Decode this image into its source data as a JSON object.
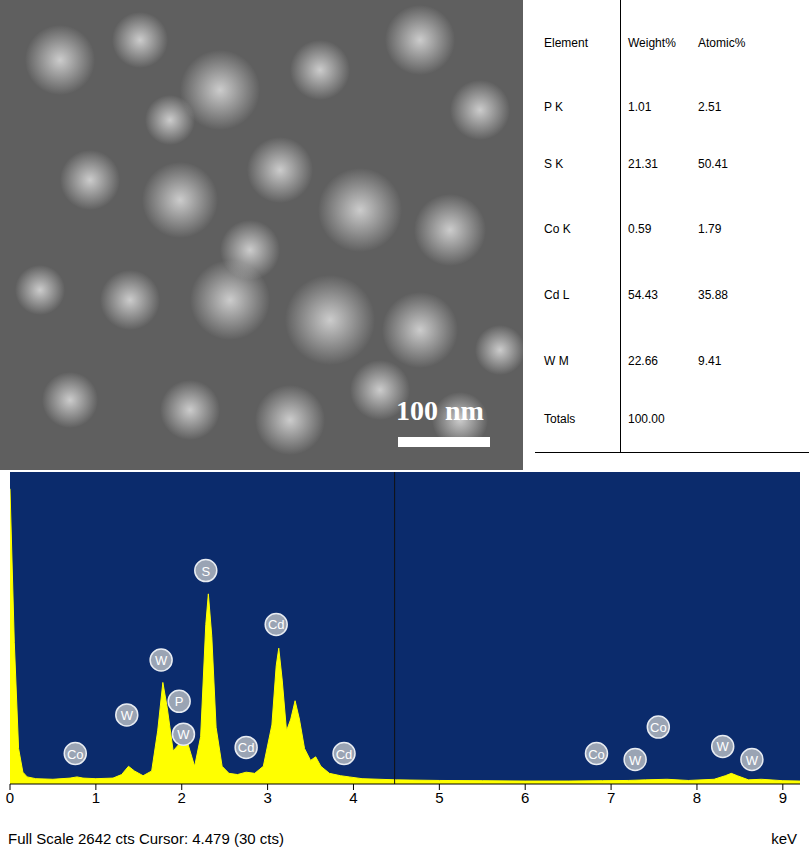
{
  "image": {
    "scale_bar": "100 nm"
  },
  "table": {
    "columns": [
      "Element",
      "Weight%",
      "Atomic%"
    ],
    "rows": [
      [
        "P K",
        "1.01",
        "2.51"
      ],
      [
        "S K",
        "21.31",
        "50.41"
      ],
      [
        "Co K",
        "0.59",
        "1.79"
      ],
      [
        "Cd L",
        "54.43",
        "35.88"
      ],
      [
        "W M",
        "22.66",
        "9.41"
      ],
      [
        "Totals",
        "100.00"
      ]
    ]
  },
  "chart_data": {
    "type": "area",
    "x_label": "keV",
    "footer": "Full Scale 2642 cts Cursor: 4.479 (30 cts)",
    "cursor": 4.479,
    "color": "#ffff00",
    "tick_labels": "x",
    "xlim": [
      0,
      9.2
    ],
    "ylim": [
      0,
      2642
    ],
    "xticks": [
      0,
      1,
      2,
      3,
      4,
      5,
      6,
      7,
      8,
      9
    ],
    "x": [
      0.0,
      0.05,
      0.1,
      0.15,
      0.2,
      0.3,
      0.5,
      0.7,
      0.78,
      0.85,
      1.0,
      1.2,
      1.3,
      1.38,
      1.45,
      1.55,
      1.65,
      1.72,
      1.78,
      1.83,
      1.9,
      1.96,
      2.02,
      2.08,
      2.15,
      2.22,
      2.28,
      2.31,
      2.35,
      2.4,
      2.47,
      2.55,
      2.65,
      2.75,
      2.85,
      2.95,
      3.05,
      3.1,
      3.13,
      3.17,
      3.22,
      3.27,
      3.32,
      3.37,
      3.43,
      3.5,
      3.56,
      3.62,
      3.72,
      3.85,
      3.95,
      4.1,
      4.5,
      5.0,
      5.5,
      6.0,
      6.5,
      6.9,
      7.2,
      7.4,
      7.65,
      7.9,
      8.2,
      8.33,
      8.4,
      8.47,
      8.6,
      8.75,
      9.0,
      9.2
    ],
    "values": [
      2500,
      1200,
      300,
      100,
      60,
      45,
      40,
      50,
      60,
      50,
      45,
      50,
      80,
      150,
      110,
      70,
      110,
      450,
      860,
      650,
      280,
      330,
      490,
      320,
      150,
      400,
      1350,
      1610,
      1250,
      480,
      150,
      90,
      80,
      100,
      90,
      150,
      500,
      1000,
      1150,
      880,
      450,
      550,
      705,
      550,
      300,
      200,
      230,
      150,
      90,
      70,
      60,
      45,
      35,
      30,
      28,
      25,
      25,
      28,
      30,
      35,
      40,
      30,
      40,
      70,
      90,
      70,
      35,
      40,
      28,
      25
    ],
    "annotations": [
      {
        "text": "Co",
        "x": 0.76,
        "y": 258
      },
      {
        "text": "W",
        "x": 1.36,
        "y": 585
      },
      {
        "text": "W",
        "x": 1.76,
        "y": 1050
      },
      {
        "text": "P",
        "x": 1.97,
        "y": 700
      },
      {
        "text": "W",
        "x": 2.02,
        "y": 422
      },
      {
        "text": "S",
        "x": 2.28,
        "y": 1807
      },
      {
        "text": "Cd",
        "x": 2.75,
        "y": 310
      },
      {
        "text": "Cd",
        "x": 3.1,
        "y": 1351
      },
      {
        "text": "Cd",
        "x": 3.89,
        "y": 258
      },
      {
        "text": "Co",
        "x": 6.83,
        "y": 258
      },
      {
        "text": "W",
        "x": 7.28,
        "y": 207
      },
      {
        "text": "Co",
        "x": 7.55,
        "y": 482
      },
      {
        "text": "W",
        "x": 8.3,
        "y": 318
      },
      {
        "text": "W",
        "x": 8.64,
        "y": 207
      }
    ]
  }
}
